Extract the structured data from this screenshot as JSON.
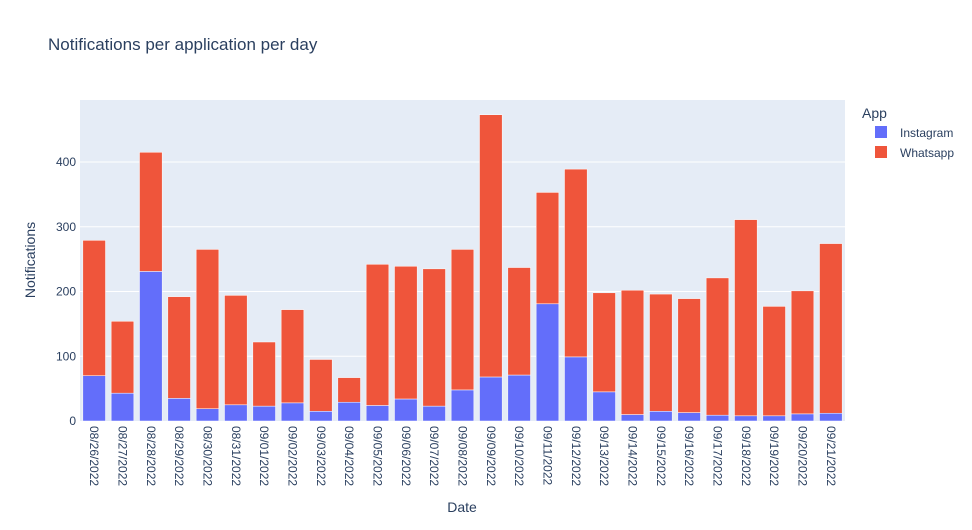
{
  "chart_data": {
    "type": "bar",
    "barmode": "stack",
    "title": "Notifications per application per day",
    "xlabel": "Date",
    "ylabel": "Notifications",
    "ylim": [
      0,
      500
    ],
    "yticks": [
      0,
      100,
      200,
      300,
      400
    ],
    "grid": true,
    "legend_title": "App",
    "legend_position": "top-right",
    "categories": [
      "08/26/2022",
      "08/27/2022",
      "08/28/2022",
      "08/29/2022",
      "08/30/2022",
      "08/31/2022",
      "09/01/2022",
      "09/02/2022",
      "09/03/2022",
      "09/04/2022",
      "09/05/2022",
      "09/06/2022",
      "09/07/2022",
      "09/08/2022",
      "09/09/2022",
      "09/10/2022",
      "09/11/2022",
      "09/12/2022",
      "09/13/2022",
      "09/14/2022",
      "09/15/2022",
      "09/16/2022",
      "09/17/2022",
      "09/18/2022",
      "09/19/2022",
      "09/20/2022",
      "09/21/2022"
    ],
    "series": [
      {
        "name": "Instagram",
        "color": "#636efa",
        "values": [
          70,
          43,
          231,
          35,
          19,
          25,
          23,
          28,
          15,
          29,
          24,
          34,
          23,
          48,
          68,
          71,
          181,
          99,
          45,
          10,
          15,
          13,
          9,
          8,
          8,
          11,
          12
        ]
      },
      {
        "name": "Whatsapp",
        "color": "#ef553b",
        "values": [
          209,
          111,
          184,
          157,
          246,
          169,
          99,
          144,
          80,
          38,
          218,
          205,
          212,
          217,
          405,
          166,
          172,
          290,
          153,
          192,
          181,
          176,
          212,
          303,
          169,
          190,
          262
        ]
      }
    ],
    "colors": {
      "plot_bg": "#e5ecf6",
      "grid": "#ffffff",
      "text": "#2a3f5f",
      "tick_text": "#2a3f5f"
    }
  }
}
